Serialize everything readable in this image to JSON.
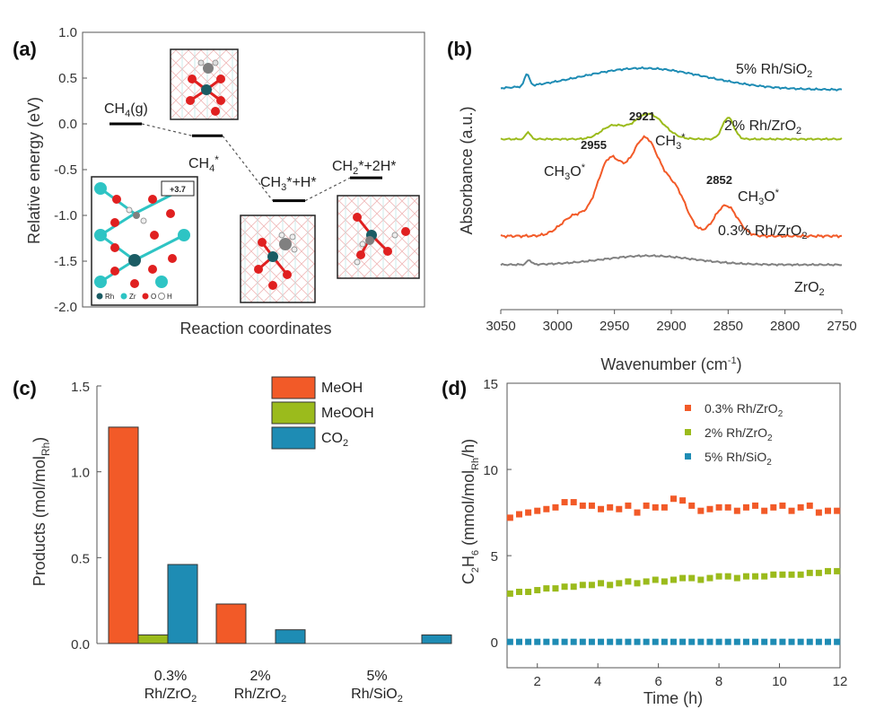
{
  "colors": {
    "orange": "#f25a28",
    "green": "#9bbb1c",
    "blue": "#1e8cb4",
    "gray": "#808080",
    "rh": "#1b5c64",
    "zr": "#2ec4c4",
    "o": "#e02020",
    "h": "#f2f2f2"
  },
  "chart_data": [
    {
      "panel": "(a)",
      "type": "line",
      "ylabel": "Relative energy (eV)",
      "xlabel": "Reaction coordinates",
      "ylim": [
        -2.0,
        1.0
      ],
      "yticks": [
        "1.0",
        "0.5",
        "0.0",
        "-0.5",
        "-1.0",
        "-1.5",
        "-2.0"
      ],
      "ytick_values": [
        1.0,
        0.5,
        0.0,
        -0.5,
        -1.0,
        -1.5,
        -2.0
      ],
      "states": [
        {
          "label": "CH4(g)",
          "energy": 0.0
        },
        {
          "label": "CH4*",
          "energy": -0.13
        },
        {
          "label": "CH3*+H*",
          "energy": -0.84
        },
        {
          "label": "CH2*+2H*",
          "energy": -0.59
        }
      ],
      "inset_legend": [
        "Rh",
        "Zr",
        "O",
        "H"
      ],
      "inset_tag": "+3.7"
    },
    {
      "panel": "(b)",
      "type": "line",
      "ylabel": "Absorbance (a.u.)",
      "xlabel": "Wavenumber (cm-1)",
      "xlim": [
        3050,
        2750
      ],
      "xticks": [
        3050,
        3000,
        2950,
        2900,
        2850,
        2800,
        2750
      ],
      "series": [
        {
          "name": "5% Rh/SiO2",
          "offset": 3.0
        },
        {
          "name": "2% Rh/ZrO2",
          "offset": 2.0
        },
        {
          "name": "0.3% Rh/ZrO2",
          "offset": 0.8
        },
        {
          "name": "ZrO2",
          "offset": 0.0
        }
      ],
      "annotations": [
        {
          "text": "2955",
          "x": 2955
        },
        {
          "text": "2921",
          "x": 2921
        },
        {
          "text": "2852",
          "x": 2852
        },
        {
          "text": "CH3O*",
          "x": 2975
        },
        {
          "text": "CH3*",
          "x": 2905
        },
        {
          "text": "CH3O*",
          "x": 2835
        }
      ]
    },
    {
      "panel": "(c)",
      "type": "bar",
      "ylabel": "Products (mol/molRh)",
      "ylim": [
        0.0,
        1.5
      ],
      "yticks": [
        "0.0",
        "0.5",
        "1.0",
        "1.5"
      ],
      "ytick_values": [
        0.0,
        0.5,
        1.0,
        1.5
      ],
      "categories": [
        "0.3% Rh/ZrO2",
        "2% Rh/ZrO2",
        "5% Rh/SiO2"
      ],
      "series": [
        {
          "name": "MeOH",
          "values": [
            1.26,
            0.23,
            0.0
          ]
        },
        {
          "name": "MeOOH",
          "values": [
            0.05,
            0.0,
            0.0
          ]
        },
        {
          "name": "CO2",
          "values": [
            0.46,
            0.08,
            0.05
          ]
        }
      ]
    },
    {
      "panel": "(d)",
      "type": "scatter",
      "ylabel": "C2H6 (mmol/molRh/h)",
      "xlabel": "Time (h)",
      "xlim": [
        1,
        12
      ],
      "ylim": [
        -1.5,
        15
      ],
      "xticks": [
        2,
        4,
        6,
        8,
        10,
        12
      ],
      "yticks": [
        0,
        5,
        10,
        15
      ],
      "x": [
        1.1,
        1.4,
        1.7,
        2.0,
        2.3,
        2.6,
        2.9,
        3.2,
        3.5,
        3.8,
        4.1,
        4.4,
        4.7,
        5.0,
        5.3,
        5.6,
        5.9,
        6.2,
        6.5,
        6.8,
        7.1,
        7.4,
        7.7,
        8.0,
        8.3,
        8.6,
        8.9,
        9.2,
        9.5,
        9.8,
        10.1,
        10.4,
        10.7,
        11.0,
        11.3,
        11.6,
        11.9
      ],
      "series": [
        {
          "name": "0.3% Rh/ZrO2",
          "values": [
            7.2,
            7.4,
            7.5,
            7.6,
            7.7,
            7.8,
            8.1,
            8.1,
            7.9,
            7.9,
            7.7,
            7.8,
            7.7,
            7.9,
            7.5,
            7.9,
            7.8,
            7.8,
            8.3,
            8.2,
            7.9,
            7.6,
            7.7,
            7.8,
            7.8,
            7.6,
            7.8,
            7.9,
            7.6,
            7.8,
            7.9,
            7.6,
            7.8,
            7.9,
            7.5,
            7.6,
            7.6
          ]
        },
        {
          "name": "2% Rh/ZrO2",
          "values": [
            2.8,
            2.9,
            2.9,
            3.0,
            3.1,
            3.1,
            3.2,
            3.2,
            3.3,
            3.3,
            3.4,
            3.3,
            3.4,
            3.5,
            3.4,
            3.5,
            3.6,
            3.5,
            3.6,
            3.7,
            3.7,
            3.6,
            3.7,
            3.8,
            3.8,
            3.7,
            3.8,
            3.8,
            3.8,
            3.9,
            3.9,
            3.9,
            3.9,
            4.0,
            4.0,
            4.1,
            4.1
          ]
        },
        {
          "name": "5% Rh/SiO2",
          "values": [
            0,
            0,
            0,
            0,
            0,
            0,
            0,
            0,
            0,
            0,
            0,
            0,
            0,
            0,
            0,
            0,
            0,
            0,
            0,
            0,
            0,
            0,
            0,
            0,
            0,
            0,
            0,
            0,
            0,
            0,
            0,
            0,
            0,
            0,
            0,
            0,
            0
          ]
        }
      ]
    }
  ]
}
